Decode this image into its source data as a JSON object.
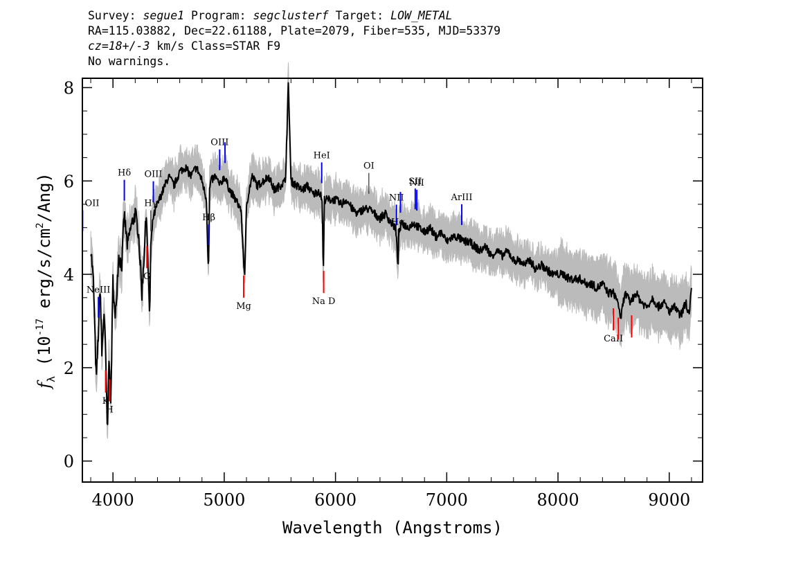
{
  "header": {
    "survey_label": "Survey:",
    "survey": "segue1",
    "program_label": "Program:",
    "program": "segclusterf",
    "target_label": "Target:",
    "target": "LOW_METAL",
    "line2": "RA=115.03882, Dec=22.61188, Plate=2079, Fiber=535, MJD=53379",
    "cz_label": "cz=18+/-3",
    "cz_rest": " km/s Class=STAR F9",
    "warnings": "No warnings."
  },
  "chart_data": {
    "type": "line",
    "xlabel": "Wavelength (Angstroms)",
    "ylabel_f": "f",
    "ylabel_sub": "λ",
    "ylabel_pre": " (10",
    "ylabel_exp1": "-17",
    "ylabel_mid": " erg/s/cm",
    "ylabel_exp2": "2",
    "ylabel_post": "/Ang)",
    "xlim": [
      3725,
      9300
    ],
    "ylim": [
      -0.45,
      8.2
    ],
    "x_ticks": [
      4000,
      5000,
      6000,
      7000,
      8000,
      9000
    ],
    "x_tick_labels": [
      "4000",
      "5000",
      "6000",
      "7000",
      "8000",
      "9000"
    ],
    "y_ticks": [
      0,
      2,
      4,
      6,
      8
    ],
    "y_tick_labels": [
      "0",
      "2",
      "4",
      "6",
      "8"
    ],
    "colors": {
      "spectrum": "#000000",
      "error": "#bbbbbb",
      "emission": "#0000ff",
      "absorption": "#ff0000",
      "neutral": "#000000"
    },
    "series": [
      {
        "x": [
          3800,
          3825,
          3850,
          3870,
          3885,
          3900,
          3920,
          3935,
          3950,
          3965,
          3980,
          4000,
          4020,
          4050,
          4080,
          4100,
          4130,
          4160,
          4200,
          4230,
          4260,
          4300,
          4330,
          4340,
          4360,
          4400,
          4450,
          4500,
          4550,
          4600,
          4650,
          4700,
          4750,
          4800,
          4840,
          4855,
          4861,
          4868,
          4880,
          4920,
          4960,
          5000,
          5050,
          5100,
          5150,
          5175,
          5185,
          5200,
          5250,
          5300,
          5350,
          5400,
          5450,
          5500,
          5550,
          5577,
          5600,
          5650,
          5700,
          5750,
          5800,
          5850,
          5880,
          5890,
          5893,
          5900,
          5950,
          6000,
          6050,
          6100,
          6150,
          6200,
          6250,
          6300,
          6350,
          6400,
          6450,
          6500,
          6540,
          6563,
          6570,
          6600,
          6650,
          6700,
          6750,
          6800,
          6850,
          6900,
          6950,
          7000,
          7050,
          7100,
          7150,
          7200,
          7250,
          7300,
          7350,
          7400,
          7450,
          7500,
          7550,
          7600,
          7650,
          7700,
          7750,
          7800,
          7850,
          7900,
          7950,
          8000,
          8050,
          8100,
          8150,
          8200,
          8250,
          8300,
          8350,
          8400,
          8450,
          8500,
          8542,
          8560,
          8600,
          8650,
          8700,
          8750,
          8800,
          8850,
          8900,
          8950,
          9000,
          9050,
          9100,
          9150,
          9180,
          9200
        ],
        "y": [
          4.6,
          3.8,
          1.7,
          2.8,
          3.8,
          2.3,
          3.2,
          2.2,
          0.5,
          2.4,
          1.2,
          3.9,
          3.0,
          4.4,
          4.2,
          5.3,
          4.6,
          5.0,
          5.3,
          4.9,
          3.6,
          5.3,
          3.1,
          4.6,
          5.2,
          5.5,
          5.8,
          6.1,
          5.9,
          6.2,
          6.3,
          6.1,
          6.3,
          6.0,
          5.6,
          4.3,
          4.3,
          5.8,
          6.0,
          6.1,
          5.9,
          6.1,
          5.8,
          5.6,
          5.4,
          4.3,
          3.9,
          5.5,
          6.1,
          5.9,
          6.0,
          6.1,
          5.8,
          5.9,
          6.0,
          8.1,
          6.0,
          5.9,
          5.8,
          5.9,
          5.7,
          5.8,
          5.6,
          4.1,
          4.2,
          5.6,
          5.6,
          5.6,
          5.5,
          5.6,
          5.4,
          5.3,
          5.4,
          5.4,
          5.3,
          5.2,
          5.3,
          5.1,
          5.0,
          4.2,
          4.9,
          5.1,
          5.0,
          5.1,
          5.0,
          4.9,
          5.0,
          4.8,
          4.9,
          4.7,
          4.8,
          4.8,
          4.7,
          4.7,
          4.6,
          4.5,
          4.6,
          4.4,
          4.5,
          4.4,
          4.5,
          4.3,
          4.3,
          4.2,
          4.3,
          4.1,
          4.2,
          4.1,
          4.0,
          4.0,
          4.0,
          3.9,
          3.9,
          3.9,
          3.8,
          3.8,
          3.7,
          3.8,
          3.6,
          3.6,
          3.4,
          3.0,
          3.6,
          3.4,
          3.6,
          3.4,
          3.3,
          3.5,
          3.3,
          3.4,
          3.2,
          3.3,
          3.1,
          3.4,
          3.1,
          3.7
        ]
      }
    ],
    "line_markers": [
      {
        "label": "OII",
        "x": 3727,
        "type": "emission"
      },
      {
        "label": "NeIII",
        "x": 3869,
        "type": "emission"
      },
      {
        "label": "Hδ",
        "x": 4102,
        "type": "emission"
      },
      {
        "label": "Hγ",
        "x": 4340,
        "type": "neutral"
      },
      {
        "label": "OIII",
        "x": 4363,
        "type": "emission"
      },
      {
        "label": "Hβ",
        "x": 4861,
        "type": "emission"
      },
      {
        "label": "OIII",
        "x": 4959,
        "type": "emission"
      },
      {
        "label": "",
        "x": 5007,
        "type": "emission"
      },
      {
        "label": "HeI",
        "x": 5876,
        "type": "emission"
      },
      {
        "label": "OI",
        "x": 6300,
        "type": "neutral"
      },
      {
        "label": "NII",
        "x": 6548,
        "type": "emission"
      },
      {
        "label": "Hα",
        "x": 6563,
        "type": "neutral"
      },
      {
        "label": "",
        "x": 6584,
        "type": "emission"
      },
      {
        "label": "SII",
        "x": 6717,
        "type": "emission"
      },
      {
        "label": "NII",
        "x": 6731,
        "type": "emission"
      },
      {
        "label": "ArIII",
        "x": 7135,
        "type": "emission"
      },
      {
        "label": "K",
        "x": 3934,
        "type": "absorption"
      },
      {
        "label": "H",
        "x": 3969,
        "type": "absorption"
      },
      {
        "label": "G",
        "x": 4305,
        "type": "absorption"
      },
      {
        "label": "Mg",
        "x": 5175,
        "type": "absorption"
      },
      {
        "label": "Na D",
        "x": 5894,
        "type": "absorption"
      },
      {
        "label": "CaII",
        "x": 8498,
        "type": "absorption"
      },
      {
        "label": "",
        "x": 8542,
        "type": "absorption"
      },
      {
        "label": "",
        "x": 8662,
        "type": "absorption"
      }
    ]
  }
}
